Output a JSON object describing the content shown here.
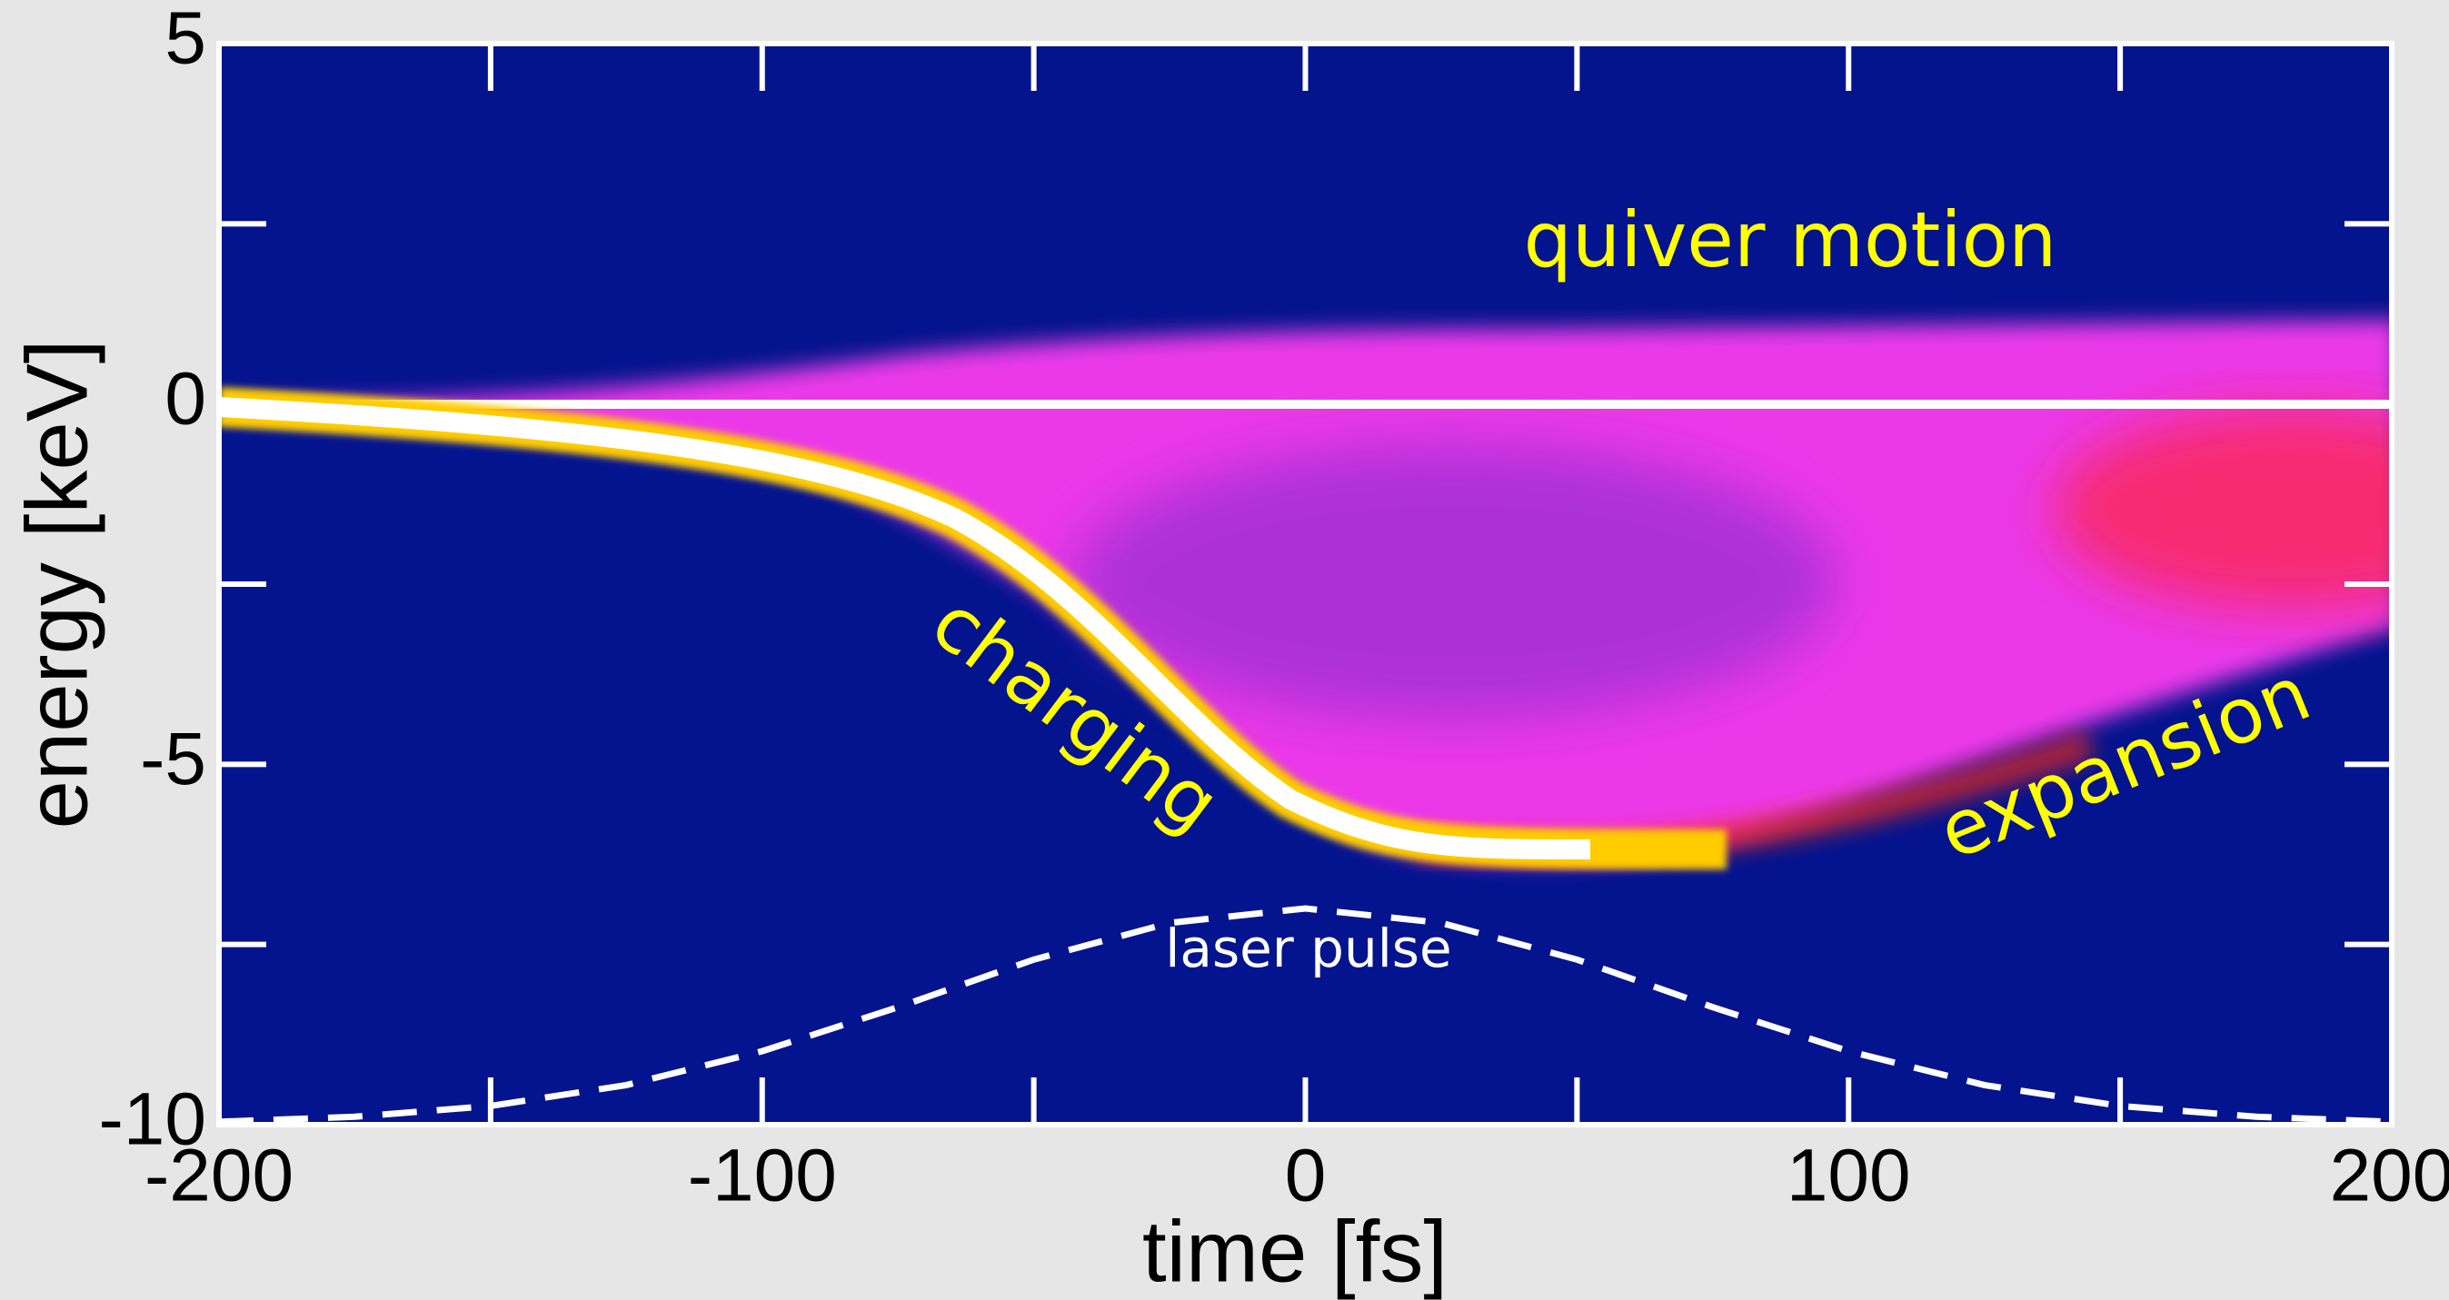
{
  "chart_data": {
    "type": "density",
    "xlabel": "time [fs]",
    "ylabel": "energy [keV]",
    "xlim": [
      -200,
      200
    ],
    "ylim": [
      -10,
      5
    ],
    "xticks": [
      -200,
      -100,
      0,
      100,
      200
    ],
    "yticks": [
      -10,
      -5,
      0,
      5
    ],
    "xminorticks": [
      -150,
      -50,
      50,
      150
    ],
    "yminorticks": [
      -7.5,
      -2.5,
      2.5
    ],
    "annotations": [
      "quiver motion",
      "charging",
      "expansion",
      "laser pulse"
    ],
    "pulse": {
      "color": "#ffffff",
      "x": [
        -200,
        -175,
        -150,
        -125,
        -100,
        -75,
        -50,
        -25,
        0,
        25,
        50,
        75,
        100,
        125,
        150,
        175,
        200
      ],
      "values": [
        -9.96,
        -9.89,
        -9.74,
        -9.45,
        -8.98,
        -8.37,
        -7.71,
        -7.2,
        -7.0,
        -7.2,
        -7.71,
        -8.37,
        -8.98,
        -9.45,
        -9.74,
        -9.89,
        -9.96
      ]
    }
  }
}
